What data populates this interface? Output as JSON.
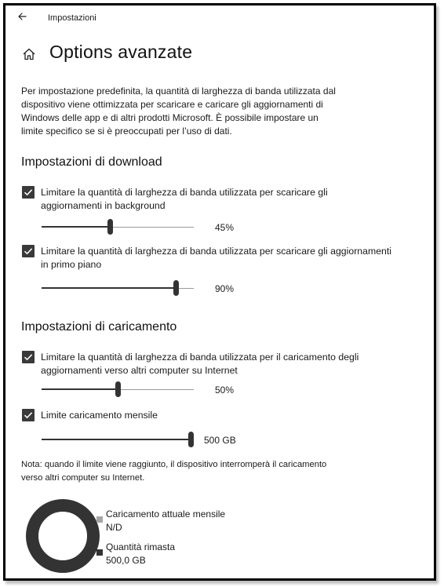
{
  "titlebar": {
    "title": "Impostazioni",
    "back_icon": "arrow-left-icon"
  },
  "header": {
    "title": "Options avanzate",
    "home_icon": "home-icon"
  },
  "intro_text": "Per impostazione predefinita, la quantità di larghezza di banda utilizzata dal dispositivo viene ottimizzata per scaricare e caricare gli aggiornamenti di Windows delle app e di altri prodotti Microsoft. È possibile impostare un limite specifico se si è preoccupati per l’uso di dati.",
  "download": {
    "title": "Impostazioni di download",
    "background": {
      "checked": true,
      "label_line1": "Limitare la quantità di larghezza di banda utilizzata per scaricare gli",
      "label_line2": "aggiornamenti in background",
      "percent": 45,
      "value_text": "45%"
    },
    "foreground": {
      "checked": true,
      "label_line1": "Limitare la quantità di larghezza di banda utilizzata per scaricare gli aggiornamenti",
      "label_line2": "in primo piano",
      "percent": 90,
      "value_text": "90%"
    }
  },
  "upload": {
    "title": "Impostazioni di caricamento",
    "limit_upload": {
      "checked": true,
      "label_line1": "Limitare la quantità di larghezza di banda utilizzata per il caricamento degli",
      "label_line2": "aggiornamenti verso altri computer su Internet",
      "percent": 50,
      "value_text": "50%"
    },
    "monthly_limit": {
      "checked": true,
      "label": "Limite caricamento mensile",
      "fraction": 1.0,
      "value_text": "500 GB"
    },
    "note_line1": "Nota: quando il limite viene raggiunto, il dispositivo interromperà il caricamento",
    "note_line2": "verso altri computer su Internet."
  },
  "usage": {
    "current_label": "Caricamento attuale mensile",
    "current_value": "N/D",
    "remaining_label": "Quantità rimasta",
    "remaining_value": "500,0 GB",
    "colors": {
      "current": "#a6a6a6",
      "remaining": "#333333",
      "ring": "#333333"
    }
  },
  "colors": {
    "accent": "#333333",
    "track": "#9a9a9a",
    "text": "#1a1a1a"
  }
}
